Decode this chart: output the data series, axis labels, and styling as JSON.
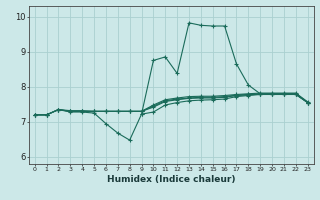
{
  "xlabel": "Humidex (Indice chaleur)",
  "bg_color": "#cce8e8",
  "grid_color": "#aad0d0",
  "line_color": "#1a6b5a",
  "xlim": [
    -0.5,
    23.5
  ],
  "ylim": [
    5.8,
    10.3
  ],
  "xticks": [
    0,
    1,
    2,
    3,
    4,
    5,
    6,
    7,
    8,
    9,
    10,
    11,
    12,
    13,
    14,
    15,
    16,
    17,
    18,
    19,
    20,
    21,
    22,
    23
  ],
  "yticks": [
    6,
    7,
    8,
    9,
    10
  ],
  "lines": [
    {
      "x": [
        0,
        1,
        2,
        3,
        4,
        5,
        6,
        7,
        8,
        9,
        10,
        11,
        12,
        13,
        14,
        15,
        16,
        17,
        18,
        19,
        20,
        21,
        22,
        23
      ],
      "y": [
        7.2,
        7.2,
        7.35,
        7.28,
        7.28,
        7.25,
        6.95,
        6.68,
        6.48,
        7.22,
        7.28,
        7.48,
        7.55,
        7.6,
        7.62,
        7.63,
        7.65,
        7.72,
        7.75,
        7.78,
        7.78,
        7.78,
        7.78,
        7.55
      ]
    },
    {
      "x": [
        0,
        1,
        2,
        3,
        4,
        5,
        6,
        7,
        8,
        9,
        10,
        11,
        12,
        13,
        14,
        15,
        16,
        17,
        18,
        19,
        20,
        21,
        22,
        23
      ],
      "y": [
        7.2,
        7.2,
        7.35,
        7.3,
        7.3,
        7.3,
        7.3,
        7.3,
        7.3,
        7.3,
        7.42,
        7.58,
        7.63,
        7.67,
        7.68,
        7.68,
        7.7,
        7.75,
        7.77,
        7.79,
        7.8,
        7.8,
        7.8,
        7.55
      ]
    },
    {
      "x": [
        0,
        1,
        2,
        3,
        4,
        5,
        6,
        7,
        8,
        9,
        10,
        11,
        12,
        13,
        14,
        15,
        16,
        17,
        18,
        19,
        20,
        21,
        22,
        23
      ],
      "y": [
        7.2,
        7.2,
        7.35,
        7.3,
        7.3,
        7.3,
        7.3,
        7.3,
        7.3,
        7.3,
        7.45,
        7.6,
        7.65,
        7.68,
        7.7,
        7.7,
        7.72,
        7.76,
        7.78,
        7.8,
        7.8,
        7.8,
        7.8,
        7.55
      ]
    },
    {
      "x": [
        0,
        1,
        2,
        3,
        4,
        5,
        6,
        7,
        8,
        9,
        10,
        11,
        12,
        13,
        14,
        15,
        16,
        17,
        18,
        19,
        20,
        21,
        22,
        23
      ],
      "y": [
        7.2,
        7.2,
        7.35,
        7.32,
        7.32,
        7.3,
        7.3,
        7.3,
        7.3,
        7.3,
        7.48,
        7.63,
        7.68,
        7.72,
        7.73,
        7.73,
        7.75,
        7.78,
        7.8,
        7.82,
        7.82,
        7.82,
        7.82,
        7.57
      ]
    },
    {
      "x": [
        9,
        10,
        11,
        12,
        13,
        14,
        15,
        16,
        17,
        18,
        19,
        20,
        21,
        22,
        23
      ],
      "y": [
        7.22,
        8.75,
        8.85,
        8.38,
        9.82,
        9.75,
        9.73,
        9.73,
        8.65,
        8.05,
        7.8,
        7.78,
        7.8,
        7.78,
        7.55
      ]
    }
  ]
}
